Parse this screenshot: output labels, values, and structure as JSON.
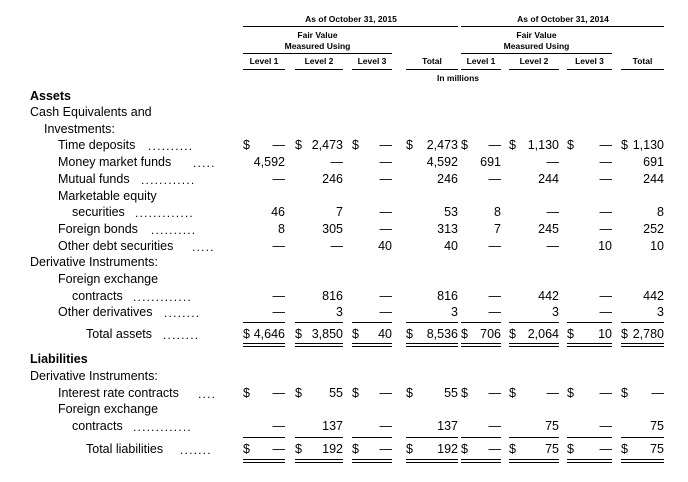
{
  "period_headers": {
    "p2015": "As of October 31, 2015",
    "p2014": "As of October 31, 2014"
  },
  "fair_value_header": {
    "line1": "Fair Value",
    "line2": "Measured Using"
  },
  "columns": {
    "level1": "Level 1",
    "level2": "Level 2",
    "level3": "Level 3",
    "total": "Total",
    "units": "In millions"
  },
  "sections": {
    "assets": "Assets",
    "liabilities": "Liabilities"
  },
  "groups": {
    "cash_equiv_1": "Cash Equivalents and",
    "cash_equiv_2": "Investments:",
    "derivatives": "Derivative Instruments:",
    "fx_1": "Foreign exchange",
    "mkt_eq_1": "Marketable equity"
  },
  "rows": [
    {
      "label": "Time deposits",
      "vals": [
        "$ —",
        "$2,473",
        "$—",
        "$2,473",
        "$—",
        "$1,130",
        "$—",
        "$1,130"
      ]
    },
    {
      "label": "Money market funds",
      "vals": [
        "4,592",
        "—",
        "—",
        "4,592",
        "691",
        "—",
        "—",
        "691"
      ]
    },
    {
      "label": "Mutual funds",
      "vals": [
        "—",
        "246",
        "—",
        "246",
        "—",
        "244",
        "—",
        "244"
      ]
    },
    {
      "label": "securities",
      "vals": [
        "46",
        "7",
        "—",
        "53",
        "8",
        "—",
        "—",
        "8"
      ]
    },
    {
      "label": "Foreign bonds",
      "vals": [
        "8",
        "305",
        "—",
        "313",
        "7",
        "245",
        "—",
        "252"
      ]
    },
    {
      "label": "Other debt securities",
      "vals": [
        "—",
        "—",
        "40",
        "40",
        "—",
        "—",
        "10",
        "10"
      ]
    },
    {
      "label": "contracts",
      "vals": [
        "—",
        "816",
        "—",
        "816",
        "—",
        "442",
        "—",
        "442"
      ]
    },
    {
      "label": "Other derivatives",
      "vals": [
        "—",
        "3",
        "—",
        "3",
        "—",
        "3",
        "—",
        "3"
      ]
    },
    {
      "label": "Total assets",
      "vals": [
        "$4,646",
        "$3,850",
        "$ 40",
        "$8,536",
        "$706",
        "$2,064",
        "$ 10",
        "$2,780"
      ]
    },
    {
      "label": "Interest rate contracts",
      "vals": [
        "$ —",
        "$ 55",
        "$—",
        "$ 55",
        "$—",
        "$ —",
        "$—",
        "$ —"
      ]
    },
    {
      "label": "contracts",
      "vals": [
        "—",
        "137",
        "—",
        "137",
        "—",
        "75",
        "—",
        "75"
      ]
    },
    {
      "label": "Total liabilities",
      "vals": [
        "$ —",
        "$ 192",
        "$—",
        "$ 192",
        "$—",
        "$ 75",
        "$—",
        "$ 75"
      ]
    }
  ]
}
